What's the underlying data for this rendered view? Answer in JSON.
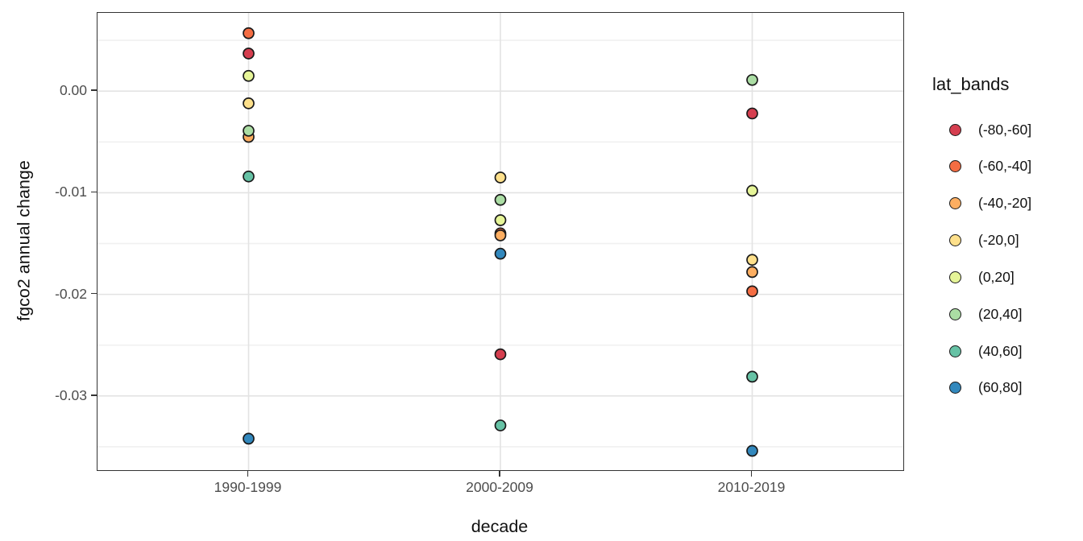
{
  "chart_data": {
    "type": "scatter",
    "title": "",
    "xlabel": "decade",
    "ylabel": "fgco2 annual change",
    "legend_title": "lat_bands",
    "categories": [
      "1990-1999",
      "2000-2009",
      "2010-2019"
    ],
    "y_ticks": [
      {
        "value": 0.0,
        "label": "0.00"
      },
      {
        "value": -0.01,
        "label": "-0.01"
      },
      {
        "value": -0.02,
        "label": "-0.02"
      },
      {
        "value": -0.03,
        "label": "-0.03"
      }
    ],
    "y_minor_ticks": [
      0.005,
      -0.005,
      -0.015,
      -0.025,
      -0.035
    ],
    "ylim": [
      -0.0373,
      0.0077
    ],
    "legend_position": "right",
    "grid": true,
    "series": [
      {
        "name": "(-80,-60]",
        "color": "#D53E4F",
        "values": [
          0.0037,
          -0.0259,
          -0.0022
        ]
      },
      {
        "name": "(-60,-40]",
        "color": "#F46D43",
        "values": [
          0.0057,
          -0.014,
          -0.0197
        ]
      },
      {
        "name": "(-40,-20]",
        "color": "#FDAE61",
        "values": [
          -0.0045,
          -0.0142,
          -0.0178
        ]
      },
      {
        "name": "(-20,0]",
        "color": "#FEE08B",
        "values": [
          -0.0012,
          -0.0085,
          -0.0166
        ]
      },
      {
        "name": "(0,20]",
        "color": "#E6F598",
        "values": [
          0.0015,
          -0.0127,
          -0.0098
        ]
      },
      {
        "name": "(20,40]",
        "color": "#ABDDA4",
        "values": [
          -0.0039,
          -0.0107,
          0.0011
        ]
      },
      {
        "name": "(40,60]",
        "color": "#66C2A5",
        "values": [
          -0.0084,
          -0.0329,
          -0.0281
        ]
      },
      {
        "name": "(60,80]",
        "color": "#3288BD",
        "values": [
          -0.0342,
          -0.016,
          -0.0354
        ]
      }
    ],
    "colors": {
      "panel_background": "#FFFFFF",
      "panel_border": "#333333",
      "grid_major": "#E3E3E3",
      "grid_minor": "#F0F0F0",
      "tick_text": "#4D4D4D",
      "title_text": "#111111",
      "point_stroke": "#1A1A1A"
    }
  }
}
